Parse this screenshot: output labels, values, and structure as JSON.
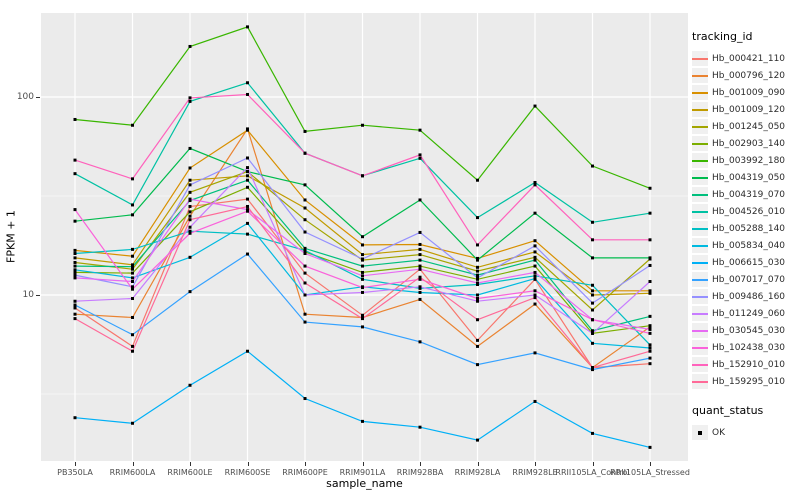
{
  "chart_data": {
    "type": "line",
    "title": "",
    "xlabel": "sample_name",
    "ylabel": "FPKM + 1",
    "y_scale": "log10",
    "y_ticks": [
      {
        "label": "100",
        "value": 100
      },
      {
        "label": "10",
        "value": 10
      }
    ],
    "y_minor_gridlines": [
      31.62,
      3.162
    ],
    "grid": "on",
    "panel_bg": "#EBEBEB",
    "major_grid_color": "#FFFFFF",
    "minor_grid_color": "#F5F5F5",
    "marker": {
      "shape": "square",
      "color": "#000000",
      "size": 3
    },
    "legend_title": "tracking_id",
    "legend_position": "right",
    "x_categories": [
      "PB350LA",
      "RRIM600LA",
      "RRIM600LE",
      "RRIM600SE",
      "RRIM600PE",
      "RRIM901LA",
      "RRIM928BA",
      "RRIM928LA",
      "RRIM928LE",
      "RRII105LA_Control",
      "RRII105LA_Stressed"
    ],
    "series": [
      {
        "name": "Hb_000421_110",
        "color": "#F8766D",
        "values": [
          8.6,
          5.5,
          28,
          30.5,
          12.9,
          7.9,
          13.5,
          5.9,
          12,
          4.3,
          4.5
        ]
      },
      {
        "name": "Hb_000796_120",
        "color": "#EA8331",
        "values": [
          8.0,
          7.7,
          25,
          69,
          8.0,
          7.7,
          9.5,
          5.5,
          9.0,
          4.3,
          6.9
        ]
      },
      {
        "name": "Hb_001009_090",
        "color": "#D89000",
        "values": [
          16.8,
          15.7,
          43.8,
          68,
          30.2,
          17.9,
          18,
          15.3,
          18.8,
          10.5,
          10.5
        ]
      },
      {
        "name": "Hb_001009_120",
        "color": "#C09B00",
        "values": [
          15.4,
          14.2,
          38,
          40,
          27.5,
          16,
          17,
          13.8,
          16.5,
          10.0,
          10.2
        ]
      },
      {
        "name": "Hb_001245_050",
        "color": "#A3A500",
        "values": [
          14.6,
          13.5,
          33,
          42,
          24,
          15,
          16,
          13.2,
          15.5,
          8.4,
          15.2
        ]
      },
      {
        "name": "Hb_002903_140",
        "color": "#7CAE00",
        "values": [
          13.0,
          12.9,
          26.3,
          35,
          16.5,
          13,
          14,
          12.0,
          14,
          6.4,
          7.0
        ]
      },
      {
        "name": "Hb_003992_180",
        "color": "#39B600",
        "values": [
          77,
          72,
          180,
          226,
          67,
          72,
          68,
          38,
          90,
          44.8,
          34.6
        ]
      },
      {
        "name": "Hb_004319_050",
        "color": "#00BB4E",
        "values": [
          23.6,
          25.4,
          55,
          42,
          36,
          19.7,
          30.2,
          15.0,
          25.9,
          15.4,
          15.4
        ]
      },
      {
        "name": "Hb_004319_070",
        "color": "#00BF7D",
        "values": [
          14.0,
          13.9,
          30,
          38,
          17.2,
          14,
          15,
          12.6,
          15,
          6.6,
          7.8
        ]
      },
      {
        "name": "Hb_004526_010",
        "color": "#00C1A3",
        "values": [
          41,
          28.5,
          95,
          118,
          52,
          40,
          49,
          24.6,
          37,
          23.3,
          25.9
        ]
      },
      {
        "name": "Hb_005288_140",
        "color": "#00BFC4",
        "values": [
          16.2,
          17.0,
          21,
          20.3,
          16.8,
          12,
          10.8,
          11.3,
          12.5,
          11.2,
          5.6
        ]
      },
      {
        "name": "Hb_005834_040",
        "color": "#00BAE0",
        "values": [
          13.4,
          12.2,
          15.5,
          23,
          10.0,
          11,
          10.3,
          10.0,
          12.1,
          5.7,
          5.4
        ]
      },
      {
        "name": "Hb_006615_030",
        "color": "#00B0F6",
        "values": [
          2.4,
          2.25,
          3.5,
          5.2,
          3.0,
          2.3,
          2.15,
          1.85,
          2.9,
          2.0,
          1.7
        ]
      },
      {
        "name": "Hb_007017_070",
        "color": "#35A2FF",
        "values": [
          8.9,
          6.3,
          10.4,
          16.1,
          7.3,
          6.9,
          5.8,
          4.45,
          5.1,
          4.2,
          4.8
        ]
      },
      {
        "name": "Hb_009486_160",
        "color": "#9590FF",
        "values": [
          12.6,
          11.0,
          36,
          49.2,
          20.8,
          15.2,
          20.7,
          12.2,
          17.7,
          9.1,
          14.1
        ]
      },
      {
        "name": "Hb_011249_060",
        "color": "#C77CFF",
        "values": [
          9.3,
          9.6,
          22,
          44,
          10.0,
          10.3,
          11,
          9.3,
          10.0,
          6.4,
          11.7
        ]
      },
      {
        "name": "Hb_030545_030",
        "color": "#E76BF3",
        "values": [
          12.2,
          11.7,
          30.5,
          27,
          16.2,
          12.5,
          13.5,
          11.5,
          13,
          7.5,
          6.7
        ]
      },
      {
        "name": "Hb_102438_030",
        "color": "#FA62DB",
        "values": [
          27,
          10.7,
          20.5,
          26.5,
          14,
          10.9,
          12,
          9.6,
          10.5,
          7.5,
          6.4
        ]
      },
      {
        "name": "Hb_152910_010",
        "color": "#FF62BC",
        "values": [
          48,
          38.6,
          99,
          103,
          52,
          40,
          51,
          17.9,
          36,
          19.0,
          19.0
        ]
      },
      {
        "name": "Hb_159295_010",
        "color": "#FF6A98",
        "values": [
          7.6,
          5.2,
          24,
          28,
          11.5,
          7.6,
          12.3,
          7.5,
          9.7,
          4.3,
          5.2
        ]
      }
    ],
    "quant_legend": {
      "title": "quant_status",
      "items": [
        {
          "label": "OK"
        }
      ]
    }
  }
}
